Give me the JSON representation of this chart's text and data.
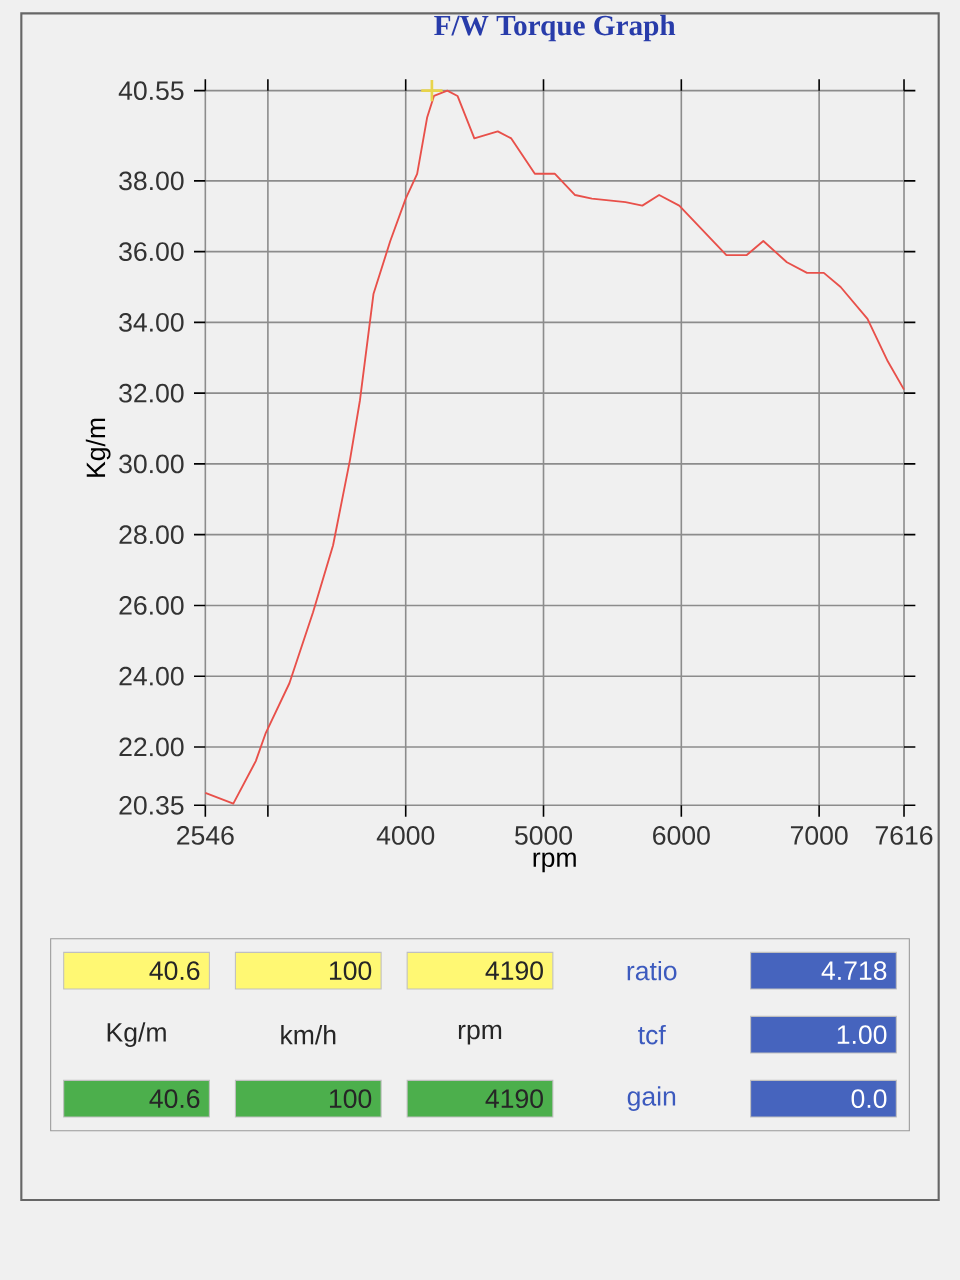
{
  "chart_data": [
    {
      "type": "line",
      "title": "F/W Torque Graph",
      "xlabel": "rpm",
      "ylabel": "Kg/m",
      "xlim": [
        2546,
        7616
      ],
      "ylim": [
        20.35,
        40.55
      ],
      "xticks": [
        2546,
        {
          "value": 3000,
          "label": null
        },
        4000,
        5000,
        6000,
        7000,
        7616
      ],
      "yticks": [
        {
          "value": 20.35,
          "label": "20.35"
        },
        {
          "value": 22,
          "label": "22.00"
        },
        {
          "value": 24,
          "label": "24.00"
        },
        {
          "value": 26,
          "label": "26.00"
        },
        {
          "value": 28,
          "label": "28.00"
        },
        {
          "value": 30,
          "label": "30.00"
        },
        {
          "value": 32,
          "label": "32.00"
        },
        {
          "value": 34,
          "label": "34.00"
        },
        {
          "value": 36,
          "label": "36.00"
        },
        {
          "value": 38,
          "label": "38.00"
        },
        {
          "value": 40.55,
          "label": "40.55"
        }
      ],
      "grid": true,
      "marker": "none",
      "series": [
        {
          "color": "#e8504a",
          "x": [
            2546,
            2749,
            2912,
            2985,
            3156,
            3327,
            3473,
            3595,
            3668,
            3766,
            3888,
            4000,
            4083,
            4156,
            4205,
            4302,
            4376,
            4498,
            4668,
            4766,
            4937,
            5083,
            5229,
            5351,
            5595,
            5717,
            5839,
            5985,
            6327,
            6473,
            6595,
            6766,
            6912,
            7034,
            7156,
            7351,
            7498,
            7616
          ],
          "values": [
            20.7,
            20.4,
            21.6,
            22.4,
            23.8,
            25.8,
            27.7,
            30.1,
            31.8,
            34.8,
            36.3,
            37.5,
            38.2,
            39.8,
            40.4,
            40.55,
            40.4,
            39.2,
            39.4,
            39.2,
            38.2,
            38.2,
            37.6,
            37.5,
            37.4,
            37.3,
            37.6,
            37.3,
            35.9,
            35.9,
            36.3,
            35.7,
            35.4,
            35.4,
            35.0,
            34.1,
            32.9,
            32.1
          ]
        },
        {
          "type": "scatter",
          "marker": "cross",
          "color": "#e8d44a",
          "x": [
            4190
          ],
          "values": [
            40.55
          ]
        }
      ]
    },
    {
      "type": "other",
      "annotations": [
        "40.6",
        "100",
        "4190",
        "ratio",
        "4.718",
        "Kg/m",
        "km/h",
        "rpm",
        "tcf",
        "1.00",
        "40.6",
        "100",
        "4190",
        "gain",
        "0.0"
      ]
    }
  ]
}
